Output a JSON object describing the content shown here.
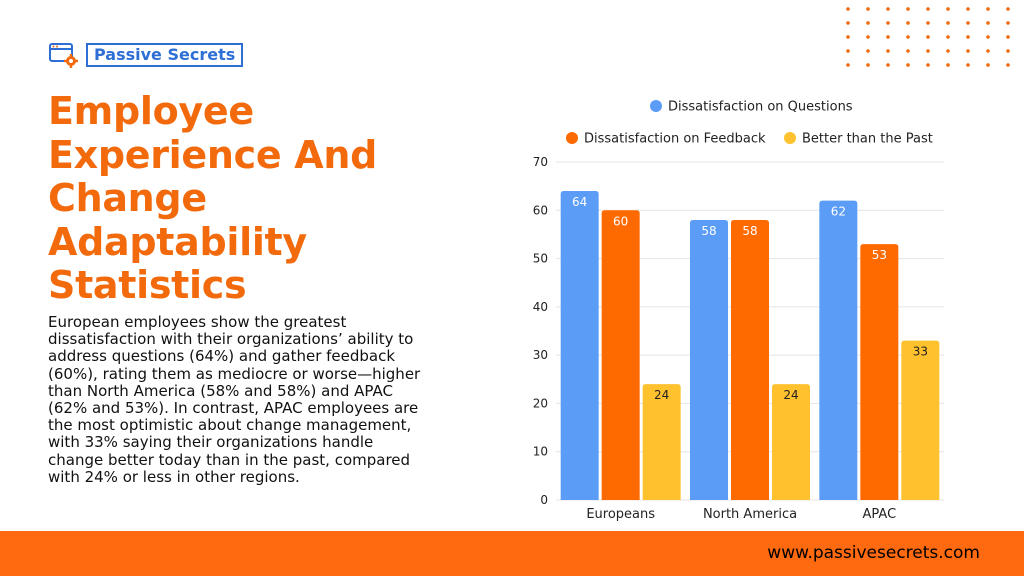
{
  "brand": {
    "name": "Passive Secrets",
    "accent_color": "#f26a0c",
    "logo_color": "#2e6fd6",
    "url": "www.passivesecrets.com"
  },
  "heading": {
    "title": "Employee Experience And Change Adaptability Statistics",
    "body": "European employees show the greatest dissatisfaction with their organizations’ ability to address questions (64%) and gather feedback (60%), rating them as mediocre or worse—higher than North America (58% and 58%) and APAC (62% and 53%). In contrast, APAC employees are the most optimistic about change management, with 33% saying their organizations handle change better today than in the past, compared with 24% or less in other regions."
  },
  "chart_data": {
    "type": "bar",
    "title": "",
    "xlabel": "",
    "ylabel": "",
    "categories": [
      "Europeans",
      "North America",
      "APAC"
    ],
    "series": [
      {
        "name": "Dissatisfaction on Questions",
        "color": "#5b9cf6",
        "label_color": "#ffffff",
        "values": [
          64,
          58,
          62
        ]
      },
      {
        "name": "Dissatisfaction on Feedback",
        "color": "#ff6a00",
        "label_color": "#ffffff",
        "values": [
          60,
          58,
          53
        ]
      },
      {
        "name": "Better than the Past",
        "color": "#ffc22e",
        "label_color": "#222222",
        "values": [
          24,
          24,
          33
        ]
      }
    ],
    "ylim": [
      0,
      70
    ],
    "yticks": [
      0,
      10,
      20,
      30,
      40,
      50,
      60,
      70
    ],
    "grid": true,
    "legend_position": "top",
    "data_labels": true
  }
}
